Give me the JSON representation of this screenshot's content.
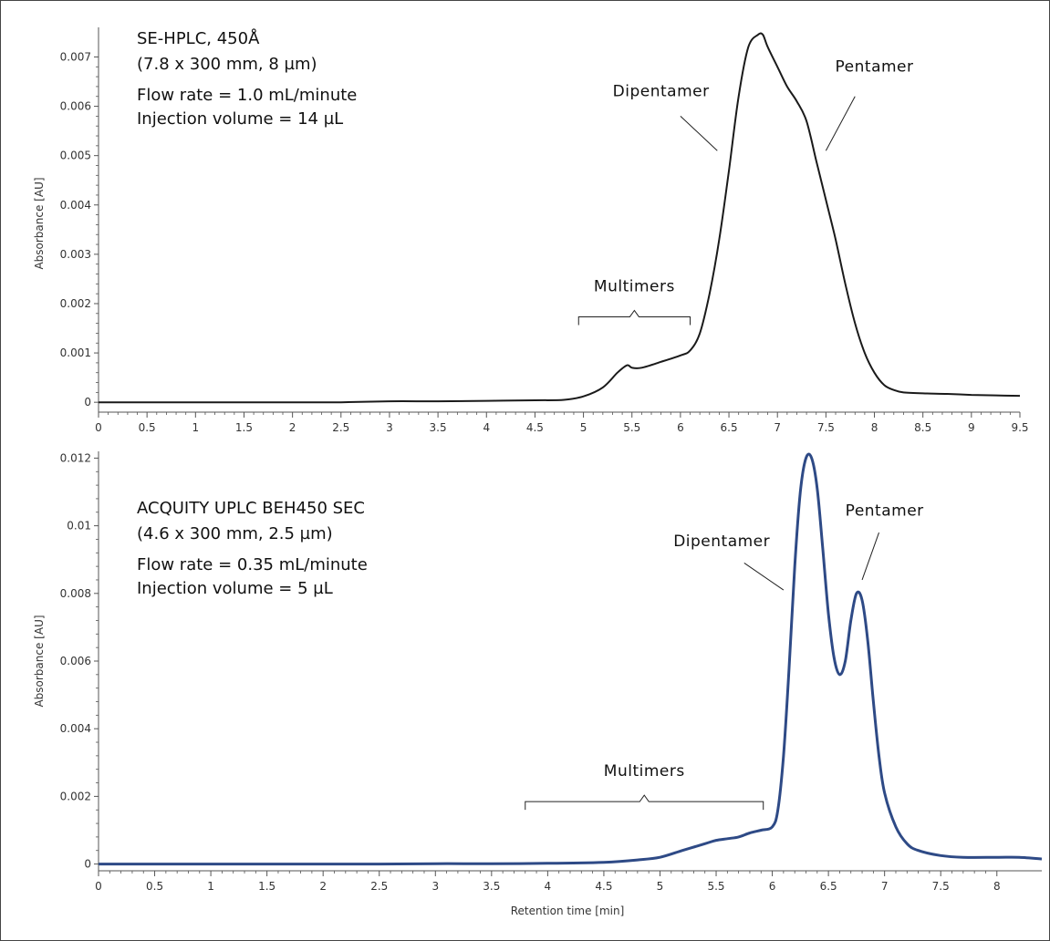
{
  "colors": {
    "top_trace": "#1a1a1a",
    "bottom_trace": "#2e4a86",
    "axis": "#555555"
  },
  "chart_data": [
    {
      "type": "line",
      "ylabel": "Absorbance [AU]",
      "xlabel": "",
      "xlim": [
        0,
        9.5
      ],
      "ylim": [
        -0.0002,
        0.0076
      ],
      "xticks": [
        "0",
        "0.5",
        "1",
        "1.5",
        "2",
        "2.5",
        "3",
        "3.5",
        "4",
        "4.5",
        "5",
        "5.5",
        "6",
        "6.5",
        "7",
        "7.5",
        "8",
        "8.5",
        "9",
        "9.5"
      ],
      "yticks": [
        "0",
        "0.001",
        "0.002",
        "0.003",
        "0.004",
        "0.005",
        "0.006",
        "0.007"
      ],
      "info": [
        "SE-HPLC, 450Å",
        "(7.8 x 300 mm, 8 µm)",
        "Flow rate = 1.0 mL/minute",
        "Injection volume = 14 µL"
      ],
      "annotations": {
        "multimers": {
          "label": "Multimers",
          "range": [
            4.95,
            6.1
          ],
          "label_x": 5.5,
          "label_y": 0.00225
        },
        "dipentamer": {
          "label": "Dipentamer",
          "label_x": 5.8,
          "label_y": 0.0062,
          "leader_from": [
            6.0,
            0.0058
          ],
          "leader_to": [
            6.38,
            0.0051
          ]
        },
        "pentamer": {
          "label": "Pentamer",
          "label_x": 8.0,
          "label_y": 0.0067,
          "leader_from": [
            7.8,
            0.0062
          ],
          "leader_to": [
            7.5,
            0.0051
          ]
        }
      },
      "series": [
        {
          "x": [
            0,
            0.5,
            1,
            1.5,
            2,
            2.5,
            3,
            3.5,
            4,
            4.5,
            4.8,
            5.0,
            5.2,
            5.35,
            5.45,
            5.5,
            5.6,
            5.8,
            6.0,
            6.1,
            6.2,
            6.3,
            6.4,
            6.5,
            6.6,
            6.7,
            6.8,
            6.85,
            6.9,
            7.0,
            7.1,
            7.2,
            7.3,
            7.4,
            7.5,
            7.6,
            7.7,
            7.8,
            7.9,
            8.0,
            8.1,
            8.2,
            8.3,
            8.5,
            8.75,
            9.0,
            9.25,
            9.5
          ],
          "y": [
            0.0,
            0.0,
            0.0,
            0.0,
            0.0,
            0.0,
            2e-05,
            2e-05,
            3e-05,
            4e-05,
            5e-05,
            0.00012,
            0.0003,
            0.0006,
            0.00075,
            0.0007,
            0.0007,
            0.00082,
            0.00095,
            0.00105,
            0.0014,
            0.0022,
            0.0033,
            0.0047,
            0.0062,
            0.0072,
            0.00745,
            0.00745,
            0.0072,
            0.0068,
            0.0064,
            0.0061,
            0.0057,
            0.0049,
            0.0041,
            0.0033,
            0.0024,
            0.0016,
            0.001,
            0.0006,
            0.00035,
            0.00025,
            0.0002,
            0.00018,
            0.00017,
            0.00015,
            0.00014,
            0.00013
          ]
        }
      ]
    },
    {
      "type": "line",
      "ylabel": "Absorbance [AU]",
      "xlabel": "Retention time [min]",
      "xlim": [
        0,
        8.4
      ],
      "ylim": [
        -0.0002,
        0.0122
      ],
      "xticks": [
        "0",
        "0.5",
        "1",
        "1.5",
        "2",
        "2.5",
        "3",
        "3.5",
        "4",
        "4.5",
        "5",
        "5.5",
        "6",
        "6.5",
        "7",
        "7.5",
        "8"
      ],
      "yticks": [
        "0",
        "0.002",
        "0.004",
        "0.006",
        "0.008",
        "0.01",
        "0.012"
      ],
      "info": [
        "ACQUITY UPLC BEH450 SEC",
        "(4.6 x 300 mm, 2.5 µm)",
        "Flow rate = 0.35 mL/minute",
        "Injection volume = 5 µL"
      ],
      "annotations": {
        "multimers": {
          "label": "Multimers",
          "range": [
            3.8,
            5.92
          ],
          "label_x": 4.65,
          "label_y": 0.0026
        },
        "dipentamer": {
          "label": "Dipentamer",
          "label_x": 5.55,
          "label_y": 0.0094,
          "leader_from": [
            5.75,
            0.0089
          ],
          "leader_to": [
            6.1,
            0.0081
          ]
        },
        "pentamer": {
          "label": "Pentamer",
          "label_x": 7.0,
          "label_y": 0.0103,
          "leader_from": [
            6.95,
            0.0098
          ],
          "leader_to": [
            6.8,
            0.0084
          ]
        }
      },
      "series": [
        {
          "x": [
            0,
            0.5,
            1,
            1.5,
            2,
            2.5,
            3,
            3.5,
            4,
            4.5,
            4.8,
            5.0,
            5.2,
            5.4,
            5.5,
            5.6,
            5.7,
            5.8,
            5.9,
            6.0,
            6.05,
            6.1,
            6.15,
            6.2,
            6.25,
            6.3,
            6.35,
            6.4,
            6.45,
            6.5,
            6.55,
            6.6,
            6.65,
            6.7,
            6.75,
            6.8,
            6.85,
            6.9,
            6.95,
            7.0,
            7.1,
            7.2,
            7.3,
            7.5,
            7.7,
            8.0,
            8.2,
            8.4
          ],
          "y": [
            0.0,
            0.0,
            0.0,
            0.0,
            0.0,
            0.0,
            1e-05,
            1e-05,
            2e-05,
            5e-05,
            0.00012,
            0.0002,
            0.0004,
            0.0006,
            0.0007,
            0.00075,
            0.0008,
            0.00092,
            0.001,
            0.0011,
            0.0016,
            0.0032,
            0.0058,
            0.0088,
            0.011,
            0.012,
            0.012,
            0.0111,
            0.0093,
            0.0074,
            0.0061,
            0.0056,
            0.006,
            0.0072,
            0.008,
            0.0078,
            0.0066,
            0.0048,
            0.0032,
            0.0021,
            0.0011,
            0.0006,
            0.0004,
            0.00025,
            0.0002,
            0.0002,
            0.0002,
            0.00015
          ]
        }
      ]
    }
  ]
}
